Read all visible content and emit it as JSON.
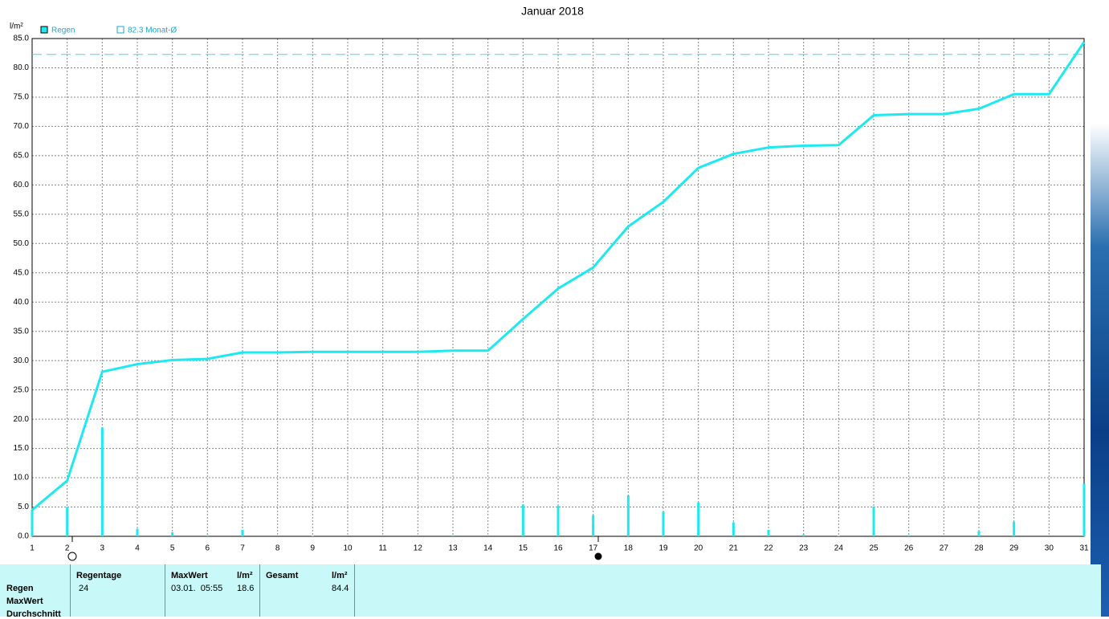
{
  "chart_data": {
    "type": "bar-line",
    "title": "Januar 2018",
    "y_unit": "l/m²",
    "x": [
      1,
      2,
      3,
      4,
      5,
      6,
      7,
      8,
      9,
      10,
      11,
      12,
      13,
      14,
      15,
      16,
      17,
      18,
      19,
      20,
      21,
      22,
      23,
      24,
      25,
      26,
      27,
      28,
      29,
      30,
      31
    ],
    "xlim": [
      1,
      31
    ],
    "xticks": [
      1,
      2,
      3,
      4,
      5,
      6,
      7,
      8,
      9,
      10,
      11,
      12,
      13,
      14,
      15,
      16,
      17,
      18,
      19,
      20,
      21,
      22,
      23,
      24,
      25,
      26,
      27,
      28,
      29,
      30,
      31
    ],
    "ylim": [
      0,
      85
    ],
    "yticks": [
      {
        "value": 0,
        "label": "0.0"
      },
      {
        "value": 5,
        "label": "5.0"
      },
      {
        "value": 10,
        "label": "10.0"
      },
      {
        "value": 15,
        "label": "15.0"
      },
      {
        "value": 20,
        "label": "20.0"
      },
      {
        "value": 25,
        "label": "25.0"
      },
      {
        "value": 30,
        "label": "30.0"
      },
      {
        "value": 35,
        "label": "35.0"
      },
      {
        "value": 40,
        "label": "40.0"
      },
      {
        "value": 45,
        "label": "45.0"
      },
      {
        "value": 50,
        "label": "50.0"
      },
      {
        "value": 55,
        "label": "55.0"
      },
      {
        "value": 60,
        "label": "60.0"
      },
      {
        "value": 65,
        "label": "65.0"
      },
      {
        "value": 70,
        "label": "70.0"
      },
      {
        "value": 75,
        "label": "75.0"
      },
      {
        "value": 80,
        "label": "80.0"
      },
      {
        "value": 85,
        "label": "85.0"
      }
    ],
    "grid": true,
    "series": [
      {
        "name": "Regen",
        "color": "#1ee8f0",
        "values": [
          4.5,
          5.0,
          18.6,
          1.3,
          0.7,
          0.2,
          1.1,
          0,
          0.1,
          0,
          0,
          0,
          0.2,
          0,
          5.4,
          5.2,
          3.6,
          7.0,
          4.2,
          5.8,
          2.4,
          1.1,
          0.3,
          0.1,
          5.1,
          0.2,
          0,
          0.9,
          2.5,
          0,
          9.0
        ]
      }
    ],
    "cumulative": {
      "color": "#1ee8f0",
      "values": [
        4.5,
        9.5,
        28.1,
        29.4,
        30.1,
        30.3,
        31.4,
        31.4,
        31.5,
        31.5,
        31.5,
        31.5,
        31.7,
        31.7,
        37.1,
        42.3,
        45.9,
        52.9,
        57.1,
        62.9,
        65.3,
        66.4,
        66.7,
        66.8,
        71.9,
        72.1,
        72.1,
        73.0,
        75.5,
        75.5,
        84.4
      ]
    },
    "average": {
      "label": "82.3 Monat-Ø",
      "value": 82.3,
      "color": "#1ee8f0"
    }
  },
  "table": {
    "row_labels": [
      "Regen",
      "MaxWert",
      "Durchschnitt"
    ],
    "headers": [
      "Regentage",
      "MaxWert",
      "l/m²",
      "Gesamt",
      "l/m²"
    ],
    "rows": [
      [
        "24",
        "03.01.  05:55",
        "18.6",
        "84.4"
      ]
    ]
  }
}
